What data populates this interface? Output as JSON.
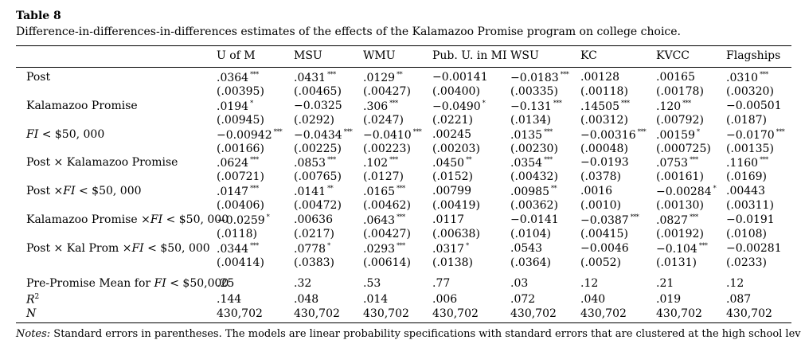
{
  "table_label": "Table 8",
  "caption": "Difference-in-differences-in-differences estimates of the effects of the Kalamazoo Promise program on college choice.",
  "columns": [
    "U of M",
    "MSU",
    "WMU",
    "Pub. U. in MI",
    "WSU",
    "KC",
    "KVCC",
    "Flagships"
  ],
  "rows": [
    {
      "label": "Post",
      "coef": [
        ".0364",
        ".0431",
        ".0129",
        "−0.00141",
        "−0.0183",
        ".00128",
        ".00165",
        ".0310"
      ],
      "stars": [
        "***",
        "***",
        "**",
        "",
        "***",
        "",
        "",
        "***"
      ],
      "se": [
        "(.00395)",
        "(.00465)",
        "(.00427)",
        "(.00400)",
        "(.00335)",
        "(.00118)",
        "(.00178)",
        "(.00320)"
      ]
    },
    {
      "label": "Kalamazoo Promise",
      "coef": [
        ".0194",
        "−0.0325",
        ".306",
        "−0.0490",
        "−0.131",
        ".14505",
        ".120",
        "−0.00501"
      ],
      "stars": [
        "*",
        "",
        "***",
        "*",
        "***",
        "***",
        "***",
        ""
      ],
      "se": [
        "(.00945)",
        "(.0292)",
        "(.0247)",
        "(.0221)",
        "(.0134)",
        "(.00312)",
        "(.00792)",
        "(.0187)"
      ]
    },
    {
      "label": "FI < $50, 000",
      "coef": [
        "−0.00942",
        "−0.0434",
        "−0.0410",
        ".00245",
        ".0135",
        "−0.00316",
        ".00159",
        "−0.0170"
      ],
      "stars": [
        "***",
        "***",
        "***",
        "",
        "***",
        "***",
        "*",
        "***"
      ],
      "se": [
        "(.00166)",
        "(.00225)",
        "(.00223)",
        "(.00203)",
        "(.00230)",
        "(.00048)",
        "(.000725)",
        "(.00135)"
      ]
    },
    {
      "label": "Post × Kalamazoo Promise",
      "coef": [
        ".0624",
        ".0853",
        ".102",
        ".0450",
        ".0354",
        "−0.0193",
        ".0753",
        ".1160"
      ],
      "stars": [
        "***",
        "***",
        "***",
        "**",
        "***",
        "",
        "***",
        "***"
      ],
      "se": [
        "(.00721)",
        "(.00765)",
        "(.0127)",
        "(.0152)",
        "(.00432)",
        "(.0378)",
        "(.00161)",
        "(.0169)"
      ]
    },
    {
      "label": "Post ×FI < $50, 000",
      "coef": [
        ".0147",
        ".0141",
        ".0165",
        ".00799",
        ".00985",
        ".0016",
        "−0.00284",
        ".00443"
      ],
      "stars": [
        "***",
        "**",
        "***",
        "",
        "**",
        "",
        "*",
        ""
      ],
      "se": [
        "(.00406)",
        "(.00472)",
        "(.00462)",
        "(.00419)",
        "(.00362)",
        "(.0010)",
        "(.00130)",
        "(.00311)"
      ]
    },
    {
      "label": "Kalamazoo Promise ×FI < $50, 000",
      "coef": [
        "−0.0259",
        ".00636",
        ".0643",
        ".0117",
        "−0.0141",
        "−0.0387",
        ".0827",
        "−0.0191"
      ],
      "stars": [
        "*",
        "",
        "***",
        "",
        "",
        "***",
        "***",
        ""
      ],
      "se": [
        "(.0118)",
        "(.0217)",
        "(.00427)",
        "(.00638)",
        "(.0104)",
        "(.00415)",
        "(.00192)",
        "(.0108)"
      ]
    },
    {
      "label": "Post × Kal Prom ×FI < $50, 000",
      "coef": [
        ".0344",
        ".0778",
        ".0293",
        ".0317",
        ".0543",
        "−0.0046",
        "−0.104",
        "−0.00281"
      ],
      "stars": [
        "***",
        "*",
        "***",
        "*",
        "",
        "",
        "***",
        ""
      ],
      "se": [
        "(.00414)",
        "(.0383)",
        "(.00614)",
        "(.0138)",
        "(.0364)",
        "(.0052)",
        "(.0131)",
        "(.0233)"
      ]
    }
  ],
  "summary": [
    {
      "label": "Pre-Promise Mean for FI < $50,000",
      "values": [
        ".25",
        ".32",
        ".53",
        ".77",
        ".03",
        ".12",
        ".21",
        ".12"
      ]
    },
    {
      "label": "R²",
      "values": [
        ".144",
        ".048",
        ".014",
        ".006",
        ".072",
        ".040",
        ".019",
        ".087"
      ]
    },
    {
      "label": "N",
      "values": [
        "430,702",
        "430,702",
        "430,702",
        "430,702",
        "430,702",
        "430,702",
        "430,702",
        "430,702"
      ]
    }
  ],
  "notes": "Notes: Standard errors in parentheses. The models are linear probability specifications with standard errors that are clustered at the high school level. The"
}
